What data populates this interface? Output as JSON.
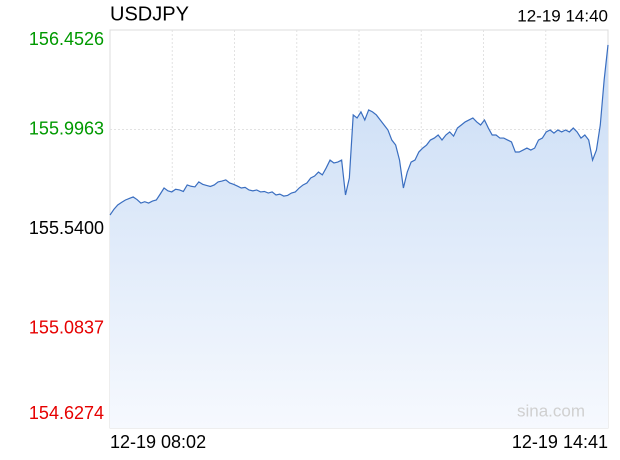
{
  "chart_data": {
    "type": "line",
    "title": "USDJPY",
    "timestamp": "12-19 14:40",
    "x_labels": [
      "12-19 08:02",
      "12-19 14:41"
    ],
    "watermark": "sina.com",
    "base": 155.54,
    "up_color": "#009900",
    "down_color": "#e60000",
    "base_color": "#000000",
    "ylim": [
      154.6274,
      156.4526
    ],
    "yticks": [
      156.4526,
      155.9963,
      {
        "value": 155.54,
        "label": "155.5400"
      },
      155.0837,
      154.6274
    ],
    "series": [
      {
        "name": "USDJPY",
        "color": "#3a6ec0",
        "values": [
          155.604,
          155.63,
          155.65,
          155.662,
          155.673,
          155.68,
          155.687,
          155.675,
          155.659,
          155.665,
          155.659,
          155.668,
          155.673,
          155.7,
          155.728,
          155.715,
          155.71,
          155.722,
          155.719,
          155.712,
          155.742,
          155.736,
          155.733,
          155.756,
          155.745,
          155.74,
          155.735,
          155.742,
          155.756,
          155.76,
          155.765,
          155.751,
          155.745,
          155.737,
          155.728,
          155.731,
          155.719,
          155.715,
          155.719,
          155.71,
          155.712,
          155.705,
          155.71,
          155.696,
          155.7,
          155.691,
          155.694,
          155.705,
          155.71,
          155.728,
          155.742,
          155.751,
          155.774,
          155.783,
          155.801,
          155.788,
          155.82,
          155.856,
          155.843,
          155.847,
          155.856,
          155.696,
          155.774,
          156.063,
          156.049,
          156.077,
          156.04,
          156.086,
          156.077,
          156.063,
          156.04,
          156.017,
          155.994,
          155.948,
          155.925,
          155.856,
          155.728,
          155.801,
          155.847,
          155.856,
          155.893,
          155.911,
          155.925,
          155.948,
          155.957,
          155.971,
          155.948,
          155.971,
          155.985,
          155.966,
          156.003,
          156.017,
          156.031,
          156.04,
          156.049,
          156.031,
          156.017,
          156.04,
          156.003,
          155.971,
          155.971,
          155.957,
          155.957,
          155.948,
          155.939,
          155.893,
          155.893,
          155.902,
          155.911,
          155.902,
          155.911,
          155.948,
          155.957,
          155.985,
          155.994,
          155.98,
          155.994,
          155.985,
          155.994,
          155.985,
          156.003,
          155.985,
          155.957,
          155.971,
          155.948,
          155.856,
          155.902,
          156.017,
          156.223,
          156.384
        ]
      }
    ]
  }
}
